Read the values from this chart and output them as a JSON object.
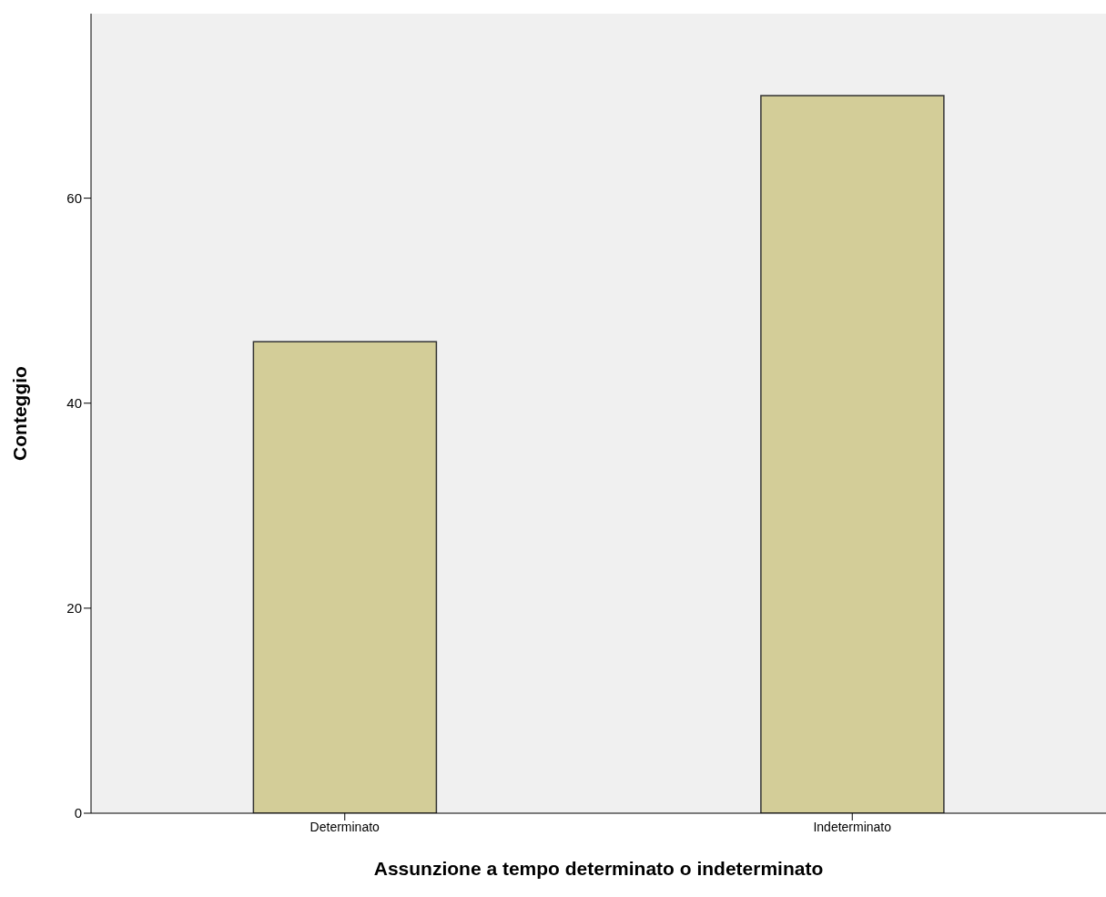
{
  "chart_data": {
    "type": "bar",
    "xlabel": "Assunzione a tempo determinato o indeterminato",
    "ylabel": "Conteggio",
    "categories": [
      "Determinato",
      "Indeterminato"
    ],
    "values": [
      46,
      70
    ],
    "color": "#d3cd98",
    "ylim": [
      0,
      78
    ],
    "yticks": [
      0,
      20,
      40,
      60
    ],
    "grid": false,
    "legend": false
  }
}
